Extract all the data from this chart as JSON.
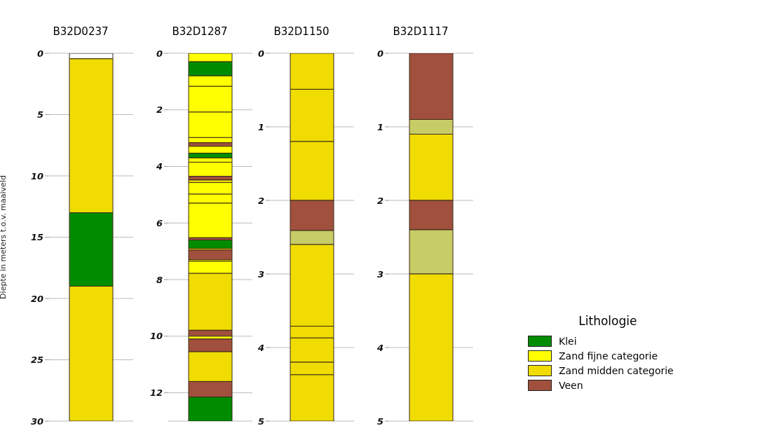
{
  "chart_data": [
    {
      "type": "bar",
      "title": "B32D0237",
      "ylabel": "Diepte in meters t.o.v. maaiveld",
      "legend": "right",
      "categories": [
        null
      ],
      "stacked": true,
      "ylim": [
        30,
        0
      ],
      "yticks": [
        0,
        5,
        10,
        15,
        20,
        25,
        30
      ],
      "grid": "y",
      "series": [
        {
          "color": "#ffffff",
          "values": [
            0.45
          ]
        },
        {
          "color": "#f0dc00",
          "values": [
            12.55
          ]
        },
        {
          "name": "Klei",
          "color": "#008c00",
          "values": [
            6
          ]
        },
        {
          "color": "#f0dc00",
          "values": [
            11
          ]
        }
      ]
    },
    {
      "type": "bar",
      "title": "B32D1287",
      "legend": "right",
      "legend_title": "Lithologie",
      "categories": [
        null
      ],
      "stacked": true,
      "ylim": [
        13,
        0
      ],
      "yticks": [
        0,
        2,
        4,
        6,
        8,
        10,
        12
      ],
      "grid": "y",
      "series": [
        {
          "name": "Zand fijne categorie",
          "color": "#ffff00",
          "values": [
            0.3
          ]
        },
        {
          "color": "#008c00",
          "values": [
            0.5
          ]
        },
        {
          "color": "#ffff00",
          "values": [
            0.37
          ]
        },
        {
          "color": "#ffff00",
          "values": [
            0.91
          ]
        },
        {
          "color": "#ffff00",
          "values": [
            0.9
          ]
        },
        {
          "color": "#ffff00",
          "values": [
            0.18
          ]
        },
        {
          "color": "#a0503c",
          "values": [
            0.13
          ]
        },
        {
          "color": "#ffff00",
          "values": [
            0.24
          ]
        },
        {
          "color": "#008c00",
          "values": [
            0.17
          ]
        },
        {
          "color": "#ffff00",
          "values": [
            0.15
          ]
        },
        {
          "color": "#ffff00",
          "values": [
            0.5
          ]
        },
        {
          "color": "#a0503c",
          "values": [
            0.13
          ]
        },
        {
          "name": "Zand midden categorie",
          "color": "#f0dc00",
          "values": [
            0.09
          ]
        },
        {
          "color": "#ffff00",
          "values": [
            0.41
          ]
        },
        {
          "color": "#ffff00",
          "values": [
            0.32
          ]
        },
        {
          "color": "#ffff00",
          "values": [
            1.22
          ]
        },
        {
          "name": "Veen",
          "color": "#a0503c",
          "values": [
            0.08
          ]
        },
        {
          "color": "#008c00",
          "values": [
            0.3
          ]
        },
        {
          "color": "#ffff00",
          "values": [
            0.05
          ]
        },
        {
          "color": "#a0503c",
          "values": [
            0.35
          ]
        },
        {
          "color": "#ffff00",
          "values": [
            0.05
          ]
        },
        {
          "color": "#ffff00",
          "values": [
            0.43
          ]
        },
        {
          "color": "#f0dc00",
          "values": [
            2.01
          ]
        },
        {
          "color": "#a0503c",
          "values": [
            0.21
          ]
        },
        {
          "color": "#ffff00",
          "values": [
            0.1
          ]
        },
        {
          "color": "#a0503c",
          "values": [
            0.45
          ]
        },
        {
          "color": "#f0dc00",
          "values": [
            1.05
          ]
        },
        {
          "color": "#a0503c",
          "values": [
            0.55
          ]
        },
        {
          "color": "#008c00",
          "values": [
            0.85
          ]
        }
      ]
    },
    {
      "type": "bar",
      "title": "B32D1150",
      "categories": [
        null
      ],
      "stacked": true,
      "ylim": [
        5,
        0
      ],
      "yticks": [
        0,
        1,
        2,
        3,
        4,
        5
      ],
      "grid": "y",
      "series": [
        {
          "color": "#f0dc00",
          "values": [
            0.49
          ]
        },
        {
          "color": "#f0dc00",
          "values": [
            0.71
          ]
        },
        {
          "color": "#f0dc00",
          "values": [
            0.8
          ]
        },
        {
          "color": "#a0503c",
          "values": [
            0.41
          ]
        },
        {
          "color": "#c8cc66",
          "values": [
            0.19
          ]
        },
        {
          "color": "#f0dc00",
          "values": [
            1.11
          ]
        },
        {
          "color": "#f0dc00",
          "values": [
            0.16
          ]
        },
        {
          "color": "#f0dc00",
          "values": [
            0.33
          ]
        },
        {
          "color": "#f0dc00",
          "values": [
            0.17
          ]
        },
        {
          "color": "#f0dc00",
          "values": [
            0.63
          ]
        }
      ]
    },
    {
      "type": "bar",
      "title": "B32D1117",
      "categories": [
        null
      ],
      "stacked": true,
      "ylim": [
        5,
        0
      ],
      "yticks": [
        0,
        1,
        2,
        3,
        4,
        5
      ],
      "grid": "y",
      "series": [
        {
          "color": "#a0503c",
          "values": [
            0.9
          ]
        },
        {
          "color": "#c8cc66",
          "values": [
            0.2
          ]
        },
        {
          "color": "#f0dc00",
          "values": [
            0.9
          ]
        },
        {
          "color": "#a0503c",
          "values": [
            0.4
          ]
        },
        {
          "color": "#c8cc66",
          "values": [
            0.6
          ]
        },
        {
          "color": "#f0dc00",
          "values": [
            2.0
          ]
        }
      ]
    }
  ]
}
